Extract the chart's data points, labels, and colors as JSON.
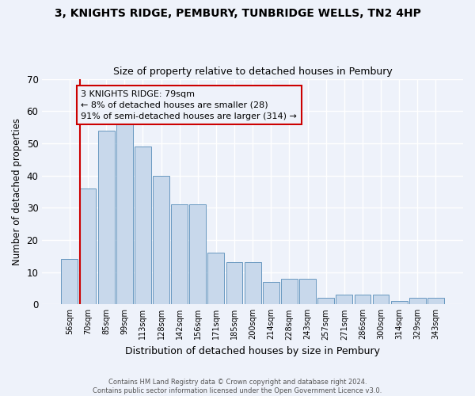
{
  "title1": "3, KNIGHTS RIDGE, PEMBURY, TUNBRIDGE WELLS, TN2 4HP",
  "title2": "Size of property relative to detached houses in Pembury",
  "xlabel": "Distribution of detached houses by size in Pembury",
  "ylabel": "Number of detached properties",
  "bar_labels": [
    "56sqm",
    "70sqm",
    "85sqm",
    "99sqm",
    "113sqm",
    "128sqm",
    "142sqm",
    "156sqm",
    "171sqm",
    "185sqm",
    "200sqm",
    "214sqm",
    "228sqm",
    "243sqm",
    "257sqm",
    "271sqm",
    "286sqm",
    "300sqm",
    "314sqm",
    "329sqm",
    "343sqm"
  ],
  "bar_values": [
    14,
    36,
    54,
    58,
    49,
    40,
    31,
    31,
    16,
    13,
    13,
    7,
    8,
    8,
    2,
    3,
    3,
    3,
    1,
    2,
    2
  ],
  "annotation_text": "3 KNIGHTS RIDGE: 79sqm\n← 8% of detached houses are smaller (28)\n91% of semi-detached houses are larger (314) →",
  "bar_color": "#c8d8eb",
  "bar_edge_color": "#6898c0",
  "line_color": "#cc0000",
  "annotation_box_color": "#cc0000",
  "background_color": "#eef2fa",
  "grid_color": "#ffffff",
  "footer_text": "Contains HM Land Registry data © Crown copyright and database right 2024.\nContains public sector information licensed under the Open Government Licence v3.0.",
  "ylim": [
    0,
    70
  ],
  "vline_x": 0.555
}
